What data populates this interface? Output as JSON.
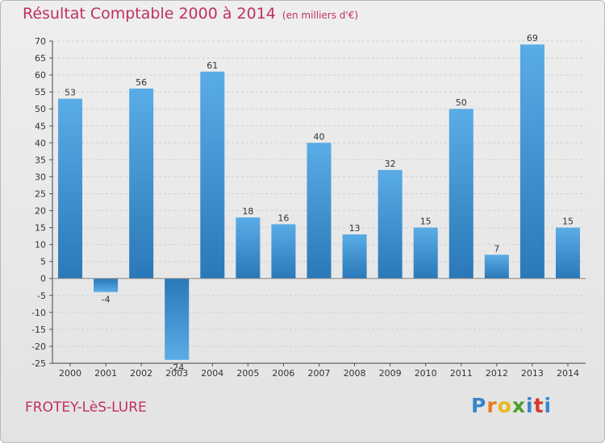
{
  "chart_data": {
    "type": "bar",
    "title": "Résultat Comptable 2000 à 2014",
    "unit": "(en milliers d'€)",
    "categories": [
      "2000",
      "2001",
      "2002",
      "2003",
      "2004",
      "2005",
      "2006",
      "2007",
      "2008",
      "2009",
      "2010",
      "2011",
      "2012",
      "2013",
      "2014"
    ],
    "series": [
      {
        "values": [
          53,
          -4,
          56,
          -24,
          61,
          18,
          16,
          40,
          13,
          32,
          15,
          50,
          7,
          69,
          15
        ]
      }
    ],
    "ylim": [
      -25,
      70
    ],
    "yticks": [
      70,
      65,
      60,
      55,
      50,
      45,
      40,
      35,
      30,
      25,
      20,
      15,
      10,
      5,
      0,
      -5,
      -10,
      -15,
      -20,
      -25
    ],
    "grid": true,
    "bar_color": "#3a8fd2"
  },
  "commune": "FROTEY-LèS-LURE",
  "logo": {
    "letters": [
      "P",
      "r",
      "o",
      "x",
      "i",
      "t",
      "i"
    ],
    "colors": [
      "#3a86c8",
      "#e87a1e",
      "#e8b818",
      "#4aa02c",
      "#3a86c8",
      "#d23a2a",
      "#3a86c8"
    ]
  }
}
